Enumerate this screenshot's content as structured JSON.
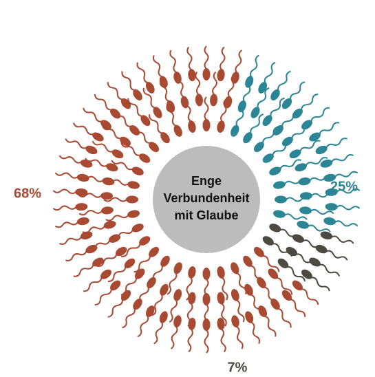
{
  "chart_data": {
    "type": "pie",
    "center_label": [
      "Enge",
      "Verbundenheit",
      "mit Glaube"
    ],
    "values": [
      25,
      7,
      68
    ],
    "value_labels": [
      "25%",
      "7%",
      "68%"
    ],
    "colors": [
      "#2b8594",
      "#4d4a42",
      "#a84a32"
    ]
  }
}
